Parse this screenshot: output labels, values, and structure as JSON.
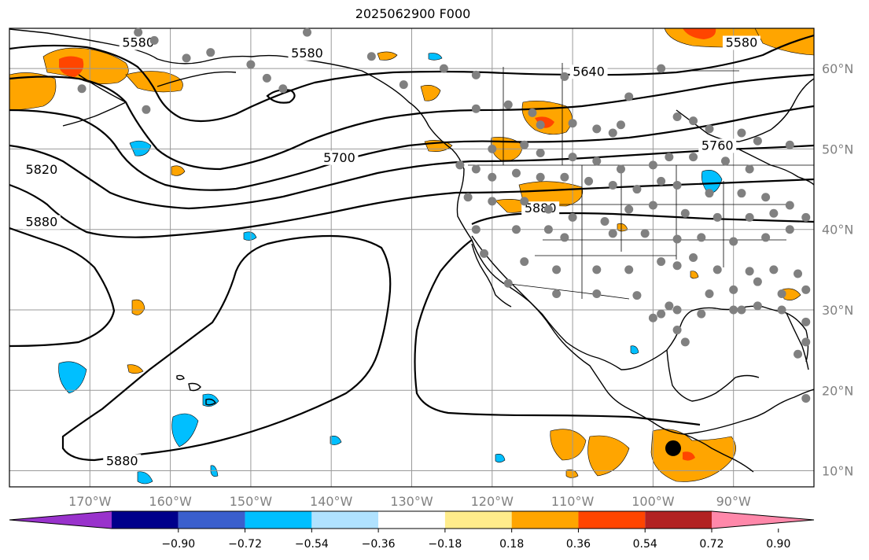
{
  "title": "2025062900 F000",
  "map": {
    "projection": "PlateCarree",
    "lon_range": [
      -180,
      -80
    ],
    "lat_range": [
      8,
      65
    ],
    "grid": true,
    "lon_ticks": [
      {
        "lon": -170,
        "label": "170°W"
      },
      {
        "lon": -160,
        "label": "160°W"
      },
      {
        "lon": -150,
        "label": "150°W"
      },
      {
        "lon": -140,
        "label": "140°W"
      },
      {
        "lon": -130,
        "label": "130°W"
      },
      {
        "lon": -120,
        "label": "120°W"
      },
      {
        "lon": -110,
        "label": "110°W"
      },
      {
        "lon": -100,
        "label": "100°W"
      },
      {
        "lon": -90,
        "label": "90°W"
      }
    ],
    "lat_ticks": [
      {
        "lat": 60,
        "label": "60°N"
      },
      {
        "lat": 50,
        "label": "50°N"
      },
      {
        "lat": 40,
        "label": "40°N"
      },
      {
        "lat": 30,
        "label": "30°N"
      },
      {
        "lat": 20,
        "label": "20°N"
      },
      {
        "lat": 10,
        "label": "10°N"
      }
    ],
    "contour_labels": [
      {
        "text": "5580",
        "lon": -164,
        "lat": 62.8
      },
      {
        "text": "5580",
        "lon": -143,
        "lat": 61.5
      },
      {
        "text": "5580",
        "lon": -89,
        "lat": 62.8
      },
      {
        "text": "5640",
        "lon": -108,
        "lat": 59.2
      },
      {
        "text": "5700",
        "lon": -139,
        "lat": 48.5
      },
      {
        "text": "5760",
        "lon": -92,
        "lat": 50.0
      },
      {
        "text": "5820",
        "lon": -176,
        "lat": 47.0
      },
      {
        "text": "5880",
        "lon": -176,
        "lat": 40.5
      },
      {
        "text": "5880",
        "lon": -114,
        "lat": 42.2
      },
      {
        "text": "5880",
        "lon": -166,
        "lat": 10.8
      }
    ],
    "stations": [
      [
        -164,
        64.5
      ],
      [
        -162,
        63.5
      ],
      [
        -158,
        61.3
      ],
      [
        -150,
        60.5
      ],
      [
        -143,
        64.5
      ],
      [
        -135,
        61.5
      ],
      [
        -131,
        58.0
      ],
      [
        -126,
        60.0
      ],
      [
        -122,
        59.2
      ],
      [
        -111,
        59.0
      ],
      [
        -103,
        56.5
      ],
      [
        -99,
        60.0
      ],
      [
        -171,
        57.5
      ],
      [
        -163,
        54.9
      ],
      [
        -155,
        62.0
      ],
      [
        -148,
        58.8
      ],
      [
        -146,
        57.5
      ],
      [
        -122,
        55.0
      ],
      [
        -118,
        55.5
      ],
      [
        -115,
        54.5
      ],
      [
        -114,
        53.0
      ],
      [
        -110,
        53.2
      ],
      [
        -107,
        52.5
      ],
      [
        -105,
        52.0
      ],
      [
        -104,
        53.0
      ],
      [
        -97,
        54.0
      ],
      [
        -95,
        53.5
      ],
      [
        -93,
        52.5
      ],
      [
        -89,
        52.0
      ],
      [
        -87,
        51.0
      ],
      [
        -83,
        50.5
      ],
      [
        -120,
        50.0
      ],
      [
        -116,
        50.5
      ],
      [
        -114,
        49.5
      ],
      [
        -110,
        49.0
      ],
      [
        -107,
        48.5
      ],
      [
        -104,
        47.5
      ],
      [
        -100,
        48.0
      ],
      [
        -98,
        49.0
      ],
      [
        -95,
        49.0
      ],
      [
        -91,
        48.5
      ],
      [
        -88,
        47.5
      ],
      [
        -124,
        48.0
      ],
      [
        -122,
        47.5
      ],
      [
        -120,
        46.5
      ],
      [
        -117,
        47.0
      ],
      [
        -114,
        46.5
      ],
      [
        -111,
        46.5
      ],
      [
        -108,
        46.0
      ],
      [
        -105,
        45.5
      ],
      [
        -102,
        45.0
      ],
      [
        -99,
        46.0
      ],
      [
        -97,
        45.5
      ],
      [
        -93,
        44.5
      ],
      [
        -89,
        44.5
      ],
      [
        -86,
        44.0
      ],
      [
        -83,
        43.0
      ],
      [
        -123,
        44.0
      ],
      [
        -120,
        43.5
      ],
      [
        -116,
        43.5
      ],
      [
        -113,
        42.5
      ],
      [
        -110,
        41.5
      ],
      [
        -106,
        41.0
      ],
      [
        -103,
        42.5
      ],
      [
        -100,
        43.0
      ],
      [
        -96,
        42.0
      ],
      [
        -92,
        41.5
      ],
      [
        -88,
        41.5
      ],
      [
        -85,
        42.0
      ],
      [
        -81,
        41.5
      ],
      [
        -122,
        40.0
      ],
      [
        -117,
        40.0
      ],
      [
        -113,
        40.0
      ],
      [
        -111,
        39.0
      ],
      [
        -105,
        39.5
      ],
      [
        -101,
        39.5
      ],
      [
        -97,
        38.8
      ],
      [
        -94,
        39.0
      ],
      [
        -90,
        38.5
      ],
      [
        -86,
        39.0
      ],
      [
        -83,
        40.0
      ],
      [
        -121,
        37.0
      ],
      [
        -116,
        36.0
      ],
      [
        -112,
        35.0
      ],
      [
        -107,
        35.0
      ],
      [
        -103,
        35.0
      ],
      [
        -99,
        36.0
      ],
      [
        -97,
        35.5
      ],
      [
        -95,
        36.5
      ],
      [
        -92,
        35.0
      ],
      [
        -88,
        34.8
      ],
      [
        -85,
        35.0
      ],
      [
        -82,
        34.5
      ],
      [
        -118,
        33.3
      ],
      [
        -112,
        32.0
      ],
      [
        -107,
        32.0
      ],
      [
        -102,
        31.8
      ],
      [
        -99,
        29.5
      ],
      [
        -97,
        30.0
      ],
      [
        -93,
        32.0
      ],
      [
        -90,
        32.5
      ],
      [
        -87,
        33.5
      ],
      [
        -84,
        32.0
      ],
      [
        -81,
        32.5
      ],
      [
        -97,
        27.5
      ],
      [
        -96,
        26.0
      ],
      [
        -94,
        29.5
      ],
      [
        -90,
        30.0
      ],
      [
        -87,
        30.5
      ],
      [
        -84,
        30.0
      ],
      [
        -81,
        28.5
      ],
      [
        -81,
        26.0
      ],
      [
        -82,
        24.5
      ],
      [
        -81,
        19.0
      ],
      [
        -89,
        30.0
      ],
      [
        -100,
        29.0
      ],
      [
        -98,
        30.5
      ]
    ],
    "large_marker": {
      "lon": -97.5,
      "lat": 12.8
    },
    "precip_note": "shaded anomaly regions"
  },
  "colorbar": {
    "ticks": [
      "−0.90",
      "−0.72",
      "−0.54",
      "−0.36",
      "−0.18",
      "0.18",
      "0.36",
      "0.54",
      "0.72",
      "0.90"
    ],
    "colors": [
      "#9932cc",
      "#00008b",
      "#3a5fcd",
      "#00bfff",
      "#b0e2ff",
      "#ffffff",
      "#ffec8b",
      "#ffa500",
      "#ff4500",
      "#b22222",
      "#ff88aa"
    ]
  }
}
